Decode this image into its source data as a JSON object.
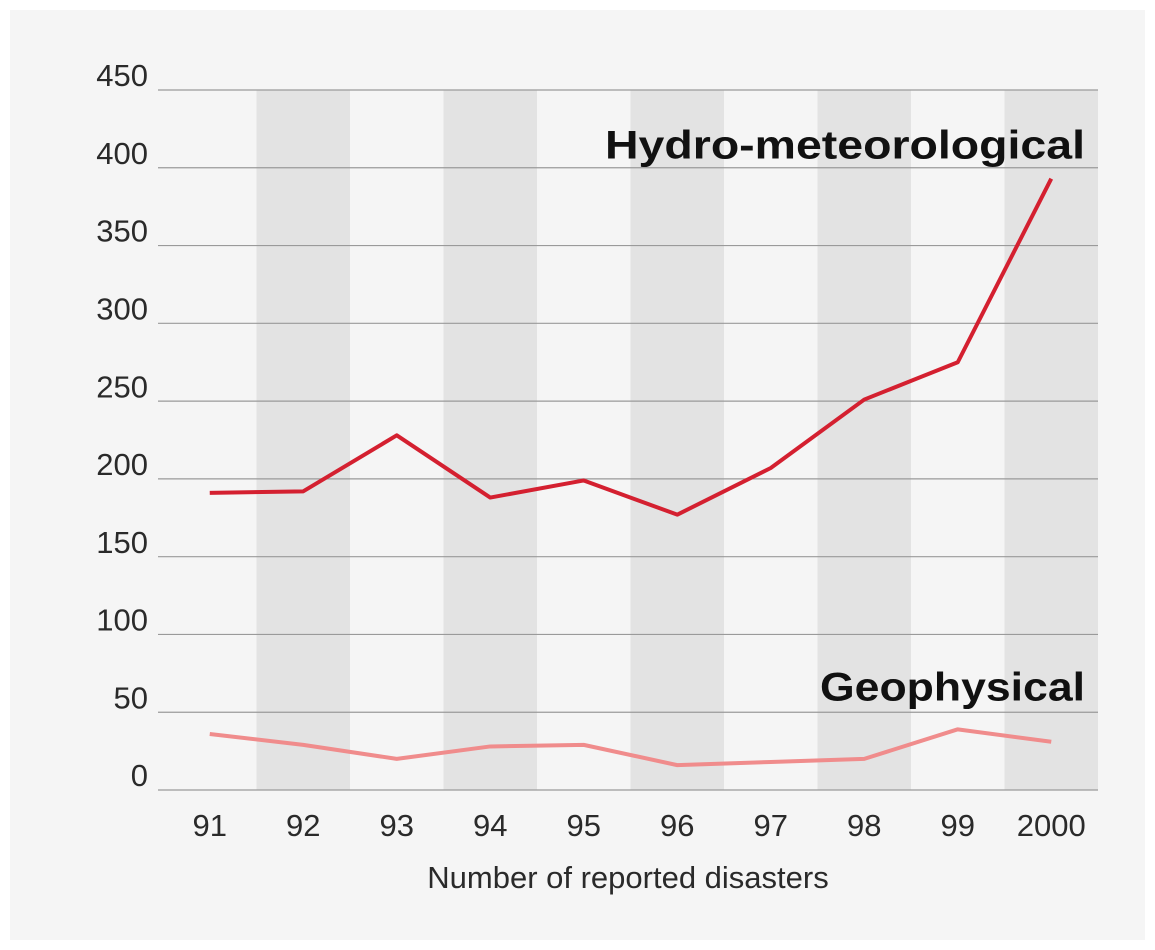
{
  "chart_data": {
    "type": "line",
    "xlabel": "Number of reported disasters",
    "categories": [
      "91",
      "92",
      "93",
      "94",
      "95",
      "96",
      "97",
      "98",
      "99",
      "2000"
    ],
    "series": [
      {
        "name": "Hydro-meteorological",
        "color": "#d42030",
        "values": [
          191,
          192,
          228,
          188,
          199,
          177,
          207,
          251,
          275,
          393
        ]
      },
      {
        "name": "Geophysical",
        "color": "#f08c8c",
        "values": [
          36,
          29,
          20,
          28,
          29,
          16,
          18,
          20,
          39,
          31
        ]
      }
    ],
    "ylim": [
      0,
      450
    ],
    "yticks": [
      0,
      50,
      100,
      150,
      200,
      250,
      300,
      350,
      400,
      450
    ],
    "grid": true
  }
}
